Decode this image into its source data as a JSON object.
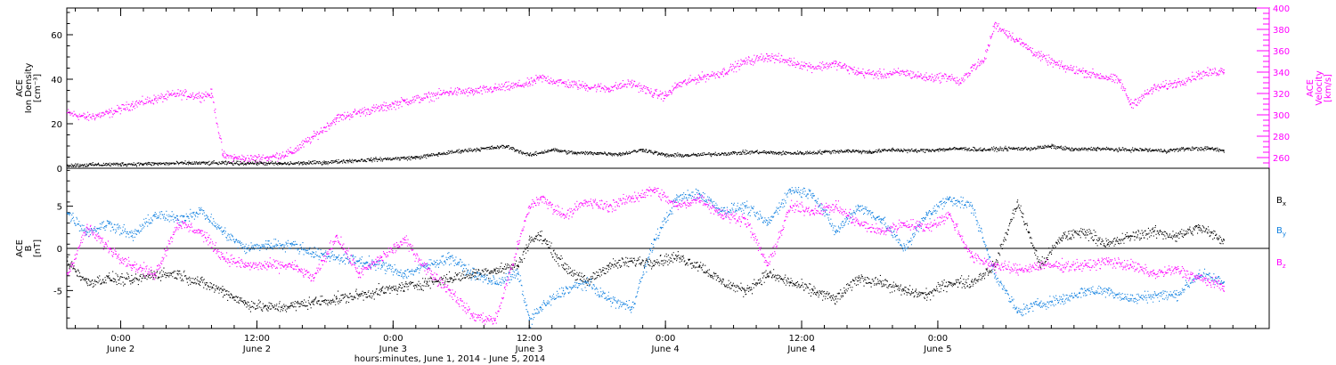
{
  "chart_data": [
    {
      "type": "scatter",
      "panel": "top",
      "x_unit": "hours since 2014-06-01 00:00",
      "xlim": [
        19.25,
        125.2
      ],
      "ylabel_lines": [
        "ACE",
        "Ion Density",
        "[cm⁻³]"
      ],
      "ylim": [
        0,
        72
      ],
      "yticks": [
        0,
        20,
        40,
        60
      ],
      "y2label_lines": [
        "ACE",
        "Velocity",
        "[km/s]"
      ],
      "y2lim": [
        250,
        400
      ],
      "y2ticks": [
        260,
        280,
        300,
        320,
        340,
        360,
        380,
        400
      ],
      "series": [
        {
          "name": "Ion Density",
          "axis": "left",
          "color": "#000000",
          "x": [
            19.3,
            22,
            24,
            27,
            30,
            33,
            36,
            38,
            40,
            42,
            44,
            46,
            48,
            50,
            52,
            54,
            56,
            58,
            60,
            62,
            64,
            66,
            68,
            70,
            72,
            74,
            76,
            78,
            80,
            82,
            84,
            86,
            88,
            90,
            92,
            94,
            96,
            98,
            100,
            102,
            104,
            106,
            108,
            110,
            112,
            114,
            116,
            118,
            120,
            121.2
          ],
          "values": [
            1.5,
            1.8,
            2,
            2.2,
            2.5,
            2.5,
            2.5,
            2.2,
            2.5,
            2.8,
            3.5,
            4,
            4.5,
            5,
            6.5,
            8,
            9,
            10,
            6,
            8.5,
            7,
            7,
            6.5,
            8.5,
            6,
            6,
            6.5,
            7,
            7.5,
            7,
            7,
            7.5,
            8,
            7.5,
            8.5,
            8,
            8.5,
            9,
            8.5,
            9,
            9,
            10,
            8.5,
            9,
            8.5,
            8.5,
            8,
            9,
            9,
            8
          ]
        },
        {
          "name": "Velocity",
          "axis": "right",
          "color": "#ff00ff",
          "x": [
            19.3,
            21,
            23,
            25,
            27,
            29,
            31,
            32,
            33,
            34,
            35,
            37,
            39,
            41,
            43,
            45,
            47,
            49,
            51,
            53,
            55,
            57,
            59,
            60,
            61,
            63,
            65,
            67,
            69,
            71,
            72,
            73,
            75,
            77,
            79,
            81,
            83,
            85,
            87,
            89,
            91,
            93,
            95,
            97,
            98,
            99,
            100,
            101,
            103,
            105,
            107,
            109,
            111,
            112,
            113,
            115,
            117,
            119,
            121.2
          ],
          "values": [
            302,
            298,
            302,
            310,
            315,
            320,
            318,
            320,
            262,
            260,
            259,
            260,
            265,
            280,
            297,
            303,
            307,
            313,
            317,
            322,
            322,
            325,
            328,
            330,
            335,
            330,
            327,
            325,
            330,
            320,
            318,
            328,
            335,
            340,
            350,
            355,
            350,
            345,
            348,
            340,
            338,
            340,
            335,
            336,
            330,
            345,
            350,
            385,
            370,
            355,
            345,
            340,
            335,
            332,
            310,
            325,
            330,
            338,
            342
          ]
        }
      ]
    },
    {
      "type": "scatter",
      "panel": "bottom",
      "x_unit": "hours since 2014-06-01 00:00",
      "xlim": [
        19.25,
        125.2
      ],
      "ylabel_lines": [
        "ACE",
        "B",
        "[nT]"
      ],
      "ylim": [
        -9.5,
        9.5
      ],
      "yticks": [
        -5,
        0,
        5
      ],
      "zero_line": true,
      "series": [
        {
          "name": "Bx",
          "color": "#000000",
          "x": [
            19.3,
            21,
            23,
            25,
            27,
            29,
            31,
            33,
            35,
            37,
            39,
            41,
            43,
            45,
            47,
            49,
            51,
            53,
            55,
            57,
            59,
            60,
            61,
            63,
            65,
            67,
            69,
            71,
            73,
            75,
            77,
            79,
            81,
            83,
            85,
            87,
            89,
            91,
            93,
            95,
            97,
            99,
            101,
            103,
            105,
            107,
            109,
            111,
            113,
            115,
            117,
            119,
            121.2
          ],
          "values": [
            -1.5,
            -4,
            -3.5,
            -3.8,
            -3,
            -3,
            -4,
            -5,
            -6.5,
            -7,
            -6.8,
            -6.3,
            -6,
            -5.5,
            -5,
            -4.5,
            -4,
            -3.5,
            -3,
            -2.5,
            -2,
            1,
            1.5,
            -2,
            -4,
            -2,
            -1.5,
            -1.5,
            -1,
            -2,
            -4,
            -5,
            -3,
            -4,
            -5,
            -6,
            -3.5,
            -4,
            -5,
            -5.5,
            -4,
            -4,
            -2,
            5.5,
            -2,
            1.5,
            2,
            0.5,
            1.5,
            2,
            1.5,
            2.5,
            1
          ]
        },
        {
          "name": "By",
          "color": "#1080e0",
          "x": [
            19.3,
            21,
            23,
            25,
            27,
            29,
            31,
            33,
            35,
            37,
            39,
            41,
            43,
            45,
            47,
            49,
            51,
            53,
            55,
            57,
            59,
            60,
            61,
            63,
            65,
            67,
            69,
            71,
            73,
            75,
            77,
            79,
            81,
            83,
            85,
            87,
            89,
            91,
            93,
            95,
            97,
            99,
            101,
            103,
            105,
            107,
            109,
            111,
            113,
            115,
            117,
            119,
            121.2
          ],
          "values": [
            4.2,
            2,
            3,
            1.5,
            4,
            3.5,
            4.5,
            2,
            0,
            0.5,
            0.5,
            -0.5,
            -1,
            -1.5,
            -2,
            -3,
            -2,
            -1,
            -3,
            -4,
            -3,
            -8.5,
            -7,
            -5,
            -4,
            -6,
            -7,
            1,
            6,
            6.5,
            4.5,
            5,
            3,
            7,
            6.5,
            2,
            5,
            3.5,
            0,
            4,
            6,
            5,
            -3,
            -7.5,
            -6.5,
            -6,
            -5,
            -5,
            -6,
            -5.5,
            -5.5,
            -3,
            -4
          ]
        },
        {
          "name": "Bz",
          "color": "#ff00ff",
          "x": [
            19.3,
            21,
            23,
            25,
            27,
            29,
            31,
            33,
            35,
            37,
            39,
            41,
            43,
            45,
            47,
            49,
            51,
            53,
            55,
            57,
            59,
            60,
            61,
            63,
            65,
            67,
            69,
            71,
            73,
            75,
            77,
            79,
            81,
            83,
            85,
            87,
            89,
            91,
            93,
            95,
            97,
            99,
            101,
            103,
            105,
            107,
            109,
            111,
            113,
            115,
            117,
            119,
            121.2
          ],
          "values": [
            -3,
            2.5,
            0,
            -2,
            -3,
            3,
            2,
            -1,
            -2,
            -2,
            -2,
            -3.5,
            1.5,
            -3,
            -1,
            1,
            -2.5,
            -5,
            -8,
            -8.5,
            0.5,
            5,
            6,
            4,
            5.5,
            5,
            6,
            7,
            5,
            6,
            4,
            3.5,
            -2,
            5,
            4.5,
            5,
            3,
            2,
            3,
            2.5,
            4,
            -1,
            -2,
            -2.5,
            -2,
            -2,
            -2,
            -1.5,
            -2,
            -3,
            -2.5,
            -3.5,
            -4.5
          ]
        }
      ]
    }
  ],
  "x_axis": {
    "ticks": [
      {
        "hour": 24,
        "time": "0:00",
        "date": "June 2"
      },
      {
        "hour": 36,
        "time": "12:00",
        "date": "June 2"
      },
      {
        "hour": 48,
        "time": "0:00",
        "date": "June 3"
      },
      {
        "hour": 60,
        "time": "12:00",
        "date": "June 3"
      },
      {
        "hour": 72,
        "time": "0:00",
        "date": "June 4"
      },
      {
        "hour": 84,
        "time": "12:00",
        "date": "June 4"
      },
      {
        "hour": 96,
        "time": "0:00",
        "date": "June 5"
      }
    ],
    "label": "hours:minutes, June  1, 2014 - June  5, 2014"
  },
  "legend_labels": [
    {
      "main": "B",
      "sub": "x",
      "color": "#000000"
    },
    {
      "main": "B",
      "sub": "y",
      "color": "#1080e0"
    },
    {
      "main": "B",
      "sub": "z",
      "color": "#ff00ff"
    }
  ],
  "colors": {
    "density": "#000000",
    "velocity": "#ff00ff",
    "bx": "#000000",
    "by": "#1080e0",
    "bz": "#ff00ff",
    "axis": "#000000"
  }
}
